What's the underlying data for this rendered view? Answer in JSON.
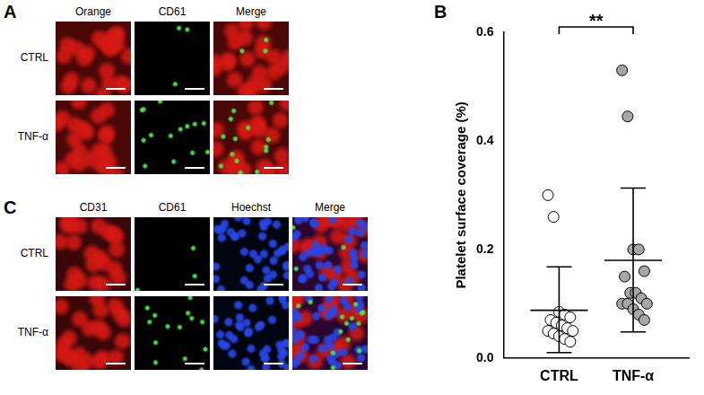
{
  "panels": [
    {
      "letter": "A",
      "columns": [
        "Orange",
        "CD61",
        "Merge"
      ],
      "rows": [
        "CTRL",
        "TNF-α"
      ]
    },
    {
      "letter": "C",
      "columns": [
        "CD31",
        "CD61",
        "Hoechst",
        "Merge"
      ],
      "rows": [
        "CTRL",
        "TNF-α"
      ]
    }
  ],
  "chart_data": {
    "panel_label": "B",
    "type": "scatter",
    "y_label": "Platelet surface coverage (%)",
    "categories": [
      "CTRL",
      "TNF-α"
    ],
    "values": [
      [
        0.3,
        0.26,
        0.085,
        0.08,
        0.075,
        0.07,
        0.065,
        0.06,
        0.055,
        0.05,
        0.05,
        0.045,
        0.04,
        0.035,
        0.03
      ],
      [
        0.53,
        0.445,
        0.2,
        0.2,
        0.16,
        0.15,
        0.12,
        0.12,
        0.11,
        0.1,
        0.1,
        0.1,
        0.09,
        0.08,
        0.07
      ]
    ],
    "colors": [
      "#ffffff",
      "#a6a6a6"
    ],
    "mean": [
      0.088,
      0.18
    ],
    "sd_range": [
      [
        0.01,
        0.168
      ],
      [
        0.048,
        0.313
      ]
    ],
    "ylim": [
      0,
      0.6
    ],
    "yticks": [
      {
        "value": 0,
        "label": "0.0"
      },
      0.2,
      0.4,
      0.6
    ],
    "grid": false,
    "annotations": [
      {
        "text": "**",
        "between": [
          "CTRL",
          "TNF-α"
        ]
      }
    ]
  }
}
